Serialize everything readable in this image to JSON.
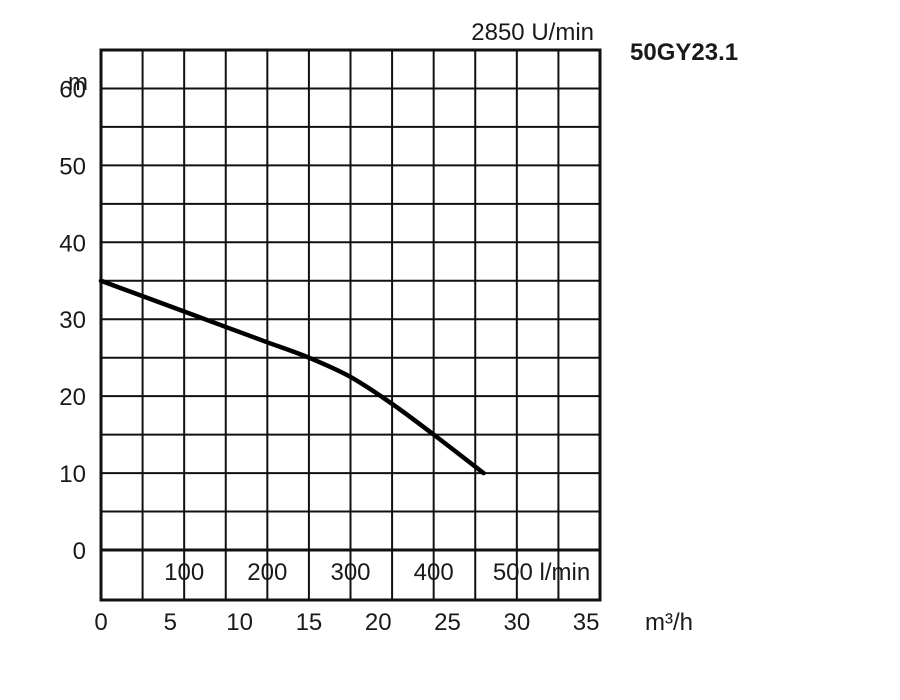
{
  "chart_data": {
    "type": "line",
    "title": "2850 U/min",
    "model": "50GY23.1",
    "ylabel": "m",
    "ylim": [
      0,
      65
    ],
    "yticks": [
      "0",
      "10",
      "20",
      "30",
      "40",
      "50",
      "60"
    ],
    "x_lpm_ticks": [
      "100",
      "200",
      "300",
      "400",
      "500 l/min"
    ],
    "x_m3h_ticks": [
      "0",
      "5",
      "10",
      "15",
      "20",
      "25",
      "30",
      "35"
    ],
    "x_m3h_unit": "m³/h",
    "xlim": [
      0,
      600
    ],
    "grid": true,
    "series": [
      {
        "x": [
          0,
          50,
          100,
          150,
          200,
          250,
          300,
          350,
          400,
          460
        ],
        "values": [
          35,
          33,
          31,
          29,
          27,
          25,
          22.5,
          19,
          15,
          10
        ]
      }
    ]
  }
}
